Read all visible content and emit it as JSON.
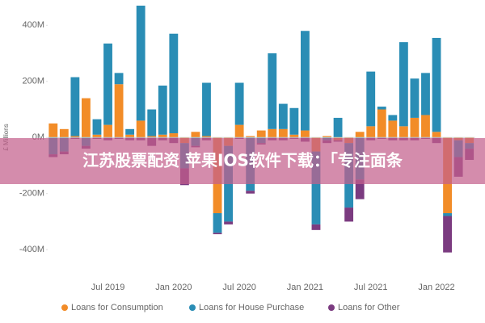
{
  "chart_data": {
    "type": "bar",
    "stacked": true,
    "y_label": "£ Millions",
    "categories": [
      null,
      null,
      null,
      null,
      null,
      "Jul 2019",
      null,
      null,
      null,
      null,
      null,
      "Jan 2020",
      null,
      null,
      null,
      null,
      null,
      "Jul 2020",
      null,
      null,
      null,
      null,
      null,
      "Jan 2021",
      null,
      null,
      null,
      null,
      null,
      "Jul 2021",
      null,
      null,
      null,
      null,
      null,
      "Jan 2022",
      null,
      null,
      null
    ],
    "series": [
      {
        "name": "Loans for Consumption",
        "color": "#f28c28",
        "values": [
          50,
          30,
          5,
          140,
          10,
          45,
          190,
          10,
          60,
          5,
          10,
          15,
          -20,
          20,
          5,
          -270,
          -30,
          45,
          5,
          25,
          30,
          30,
          10,
          25,
          -50,
          5,
          -10,
          -20,
          20,
          40,
          100,
          60,
          40,
          70,
          80,
          20,
          -270,
          -10,
          -20
        ]
      },
      {
        "name": "Loans for House Purchase",
        "color": "#2a8db5",
        "values": [
          -60,
          -50,
          210,
          -30,
          55,
          290,
          40,
          20,
          410,
          95,
          175,
          355,
          -90,
          -30,
          190,
          -70,
          -270,
          150,
          -190,
          -20,
          270,
          90,
          95,
          355,
          -260,
          -10,
          70,
          -230,
          -150,
          195,
          10,
          20,
          300,
          140,
          150,
          335,
          -10,
          -60,
          -20
        ]
      },
      {
        "name": "Loans for Other",
        "color": "#7b3b80",
        "values": [
          -10,
          -10,
          -5,
          -10,
          -5,
          -10,
          -5,
          -10,
          -10,
          -30,
          -10,
          -20,
          -60,
          -5,
          -10,
          -5,
          -10,
          -5,
          -10,
          -5,
          -10,
          -10,
          -5,
          -15,
          -20,
          -10,
          -5,
          -50,
          -70,
          -10,
          -5,
          -10,
          -10,
          -10,
          -5,
          -20,
          -130,
          -70,
          -40
        ]
      }
    ],
    "ylim": [
      -460,
      470
    ],
    "yticks": [
      {
        "value": -400,
        "label": "-400M"
      },
      {
        "value": -200,
        "label": "-200M"
      },
      {
        "value": 0,
        "label": "0M"
      },
      {
        "value": 200,
        "label": "200M"
      },
      {
        "value": 400,
        "label": "400M"
      }
    ],
    "grid": false,
    "legend": "bottom"
  },
  "banner": "江苏股票配资 苹果IOS软件下载：「专注面条"
}
